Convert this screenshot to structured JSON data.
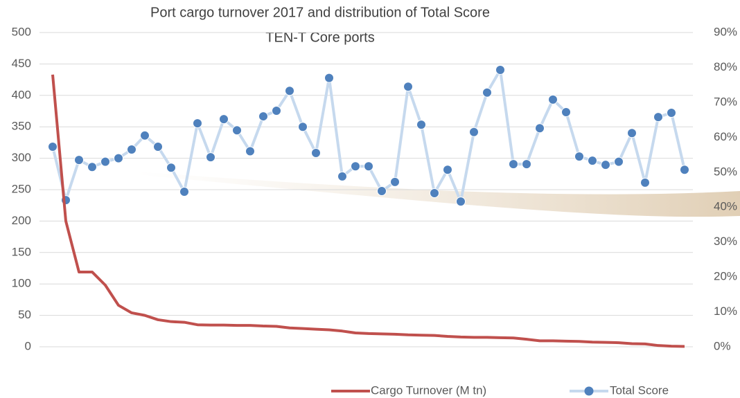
{
  "chart_data": {
    "type": "line",
    "title": "Port cargo turnover 2017 and distribution of Total Score",
    "subtitle": "TEN-T Core ports",
    "categories": [
      null,
      null,
      null,
      null,
      null,
      null,
      null,
      null,
      null,
      null,
      null,
      null,
      null,
      null,
      null,
      null,
      null,
      null,
      null,
      null,
      null,
      null,
      null,
      null,
      null,
      null,
      null,
      null,
      null,
      null,
      null,
      null,
      null,
      null,
      null,
      null,
      null,
      null,
      null,
      null,
      null,
      null,
      null,
      null,
      null,
      null,
      null,
      null,
      null
    ],
    "series": [
      {
        "name": "Cargo Turnover (M tn)",
        "color": "#c0504d",
        "values": [
          433,
          200,
          119,
          119,
          98,
          66,
          54,
          50,
          43,
          40,
          39,
          35,
          34.5,
          34.5,
          34,
          34,
          33,
          32.5,
          30,
          29,
          28,
          27,
          25,
          22,
          21,
          20.5,
          20,
          19,
          18.5,
          18,
          16.5,
          15.5,
          15,
          15,
          14.5,
          14,
          12,
          9.5,
          9.5,
          9,
          8.5,
          7.5,
          7,
          6.5,
          5,
          4.5,
          2,
          1,
          0.5
        ]
      },
      {
        "name": "Total Score",
        "color": "#4f81bd",
        "axis": "y2",
        "values": [
          57.3,
          42,
          53.5,
          51.5,
          53,
          54,
          56.5,
          60.5,
          57.3,
          51.3,
          44.4,
          64,
          54.3,
          65.2,
          62,
          56,
          66,
          67.6,
          73.3,
          63,
          55.5,
          77,
          48.8,
          51.7,
          51.7,
          44.6,
          47.2,
          74.5,
          63.6,
          44,
          50.7,
          41.6,
          61.5,
          72.8,
          79.3,
          52.3,
          52.3,
          62.6,
          70.8,
          67.2,
          54.5,
          53.3,
          52.1,
          53,
          61.2,
          47,
          65.8,
          67,
          50.7
        ]
      }
    ],
    "ylim": [
      0,
      500
    ],
    "yticks": [
      0,
      50,
      100,
      150,
      200,
      250,
      300,
      350,
      400,
      450,
      500
    ],
    "y2lim": [
      0,
      90
    ],
    "y2ticks": [
      {
        "value": 0,
        "label": "0%"
      },
      {
        "value": 10,
        "label": "10%"
      },
      {
        "value": 20,
        "label": "20%"
      },
      {
        "value": 30,
        "label": "30%"
      },
      {
        "value": 40,
        "label": "40%"
      },
      {
        "value": 50,
        "label": "50%"
      },
      {
        "value": 60,
        "label": "60%"
      },
      {
        "value": 70,
        "label": "70%"
      },
      {
        "value": 80,
        "label": "80%"
      },
      {
        "value": 90,
        "label": "90%"
      }
    ],
    "grid": true,
    "legend": "bottom"
  }
}
